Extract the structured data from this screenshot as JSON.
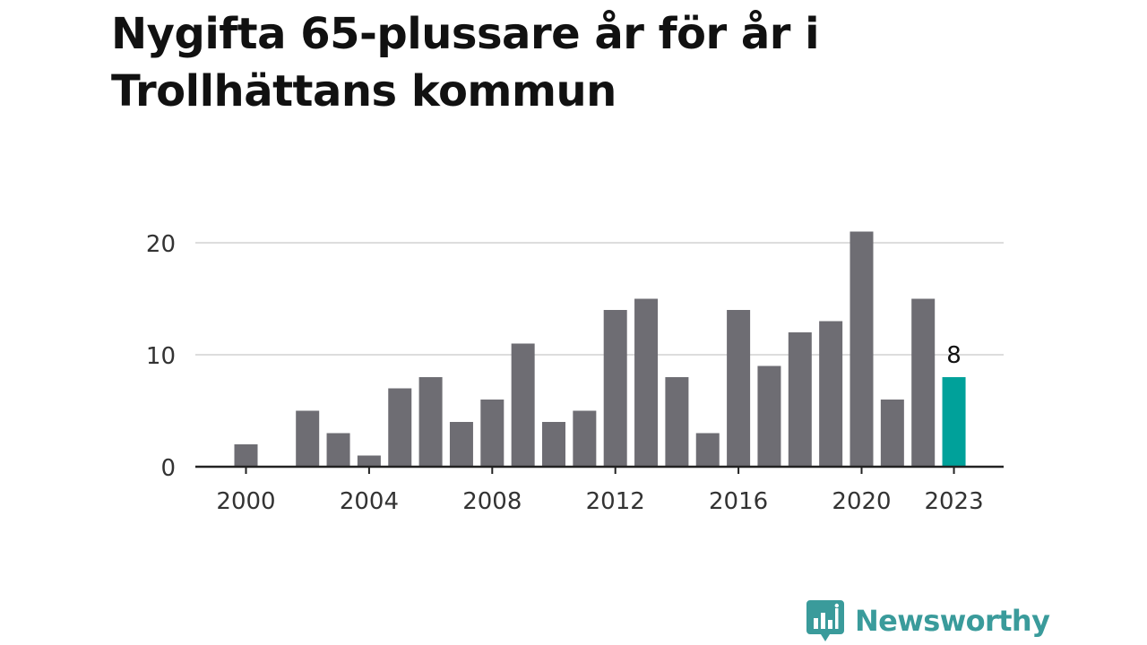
{
  "title": "Nygifta 65-plussare år för år i Trollhättans kommun",
  "brand": {
    "name": "Newsworthy",
    "icon": "newsworthy-logo-icon",
    "color": "#3a9b9b"
  },
  "colors": {
    "bar": "#6e6d73",
    "highlight": "#00a19a",
    "grid": "#dddddd",
    "axis": "#222222",
    "text": "#333333"
  },
  "chart_data": {
    "type": "bar",
    "categories": [
      2000,
      2001,
      2002,
      2003,
      2004,
      2005,
      2006,
      2007,
      2008,
      2009,
      2010,
      2011,
      2012,
      2013,
      2014,
      2015,
      2016,
      2017,
      2018,
      2019,
      2020,
      2021,
      2022,
      2023
    ],
    "values": [
      2,
      0,
      5,
      3,
      1,
      7,
      8,
      4,
      6,
      11,
      4,
      5,
      14,
      15,
      8,
      3,
      14,
      9,
      12,
      13,
      21,
      6,
      15,
      8
    ],
    "x_tick_labels": [
      "2000",
      "2004",
      "2008",
      "2012",
      "2016",
      "2020",
      "2023"
    ],
    "y_ticks": [
      0,
      10,
      20
    ],
    "ylim": [
      0,
      21
    ],
    "highlight": {
      "category": 2023,
      "label": "8"
    },
    "title": "Nygifta 65-plussare år för år i Trollhättans kommun",
    "xlabel": "",
    "ylabel": "",
    "grid": true,
    "legend": "none"
  }
}
